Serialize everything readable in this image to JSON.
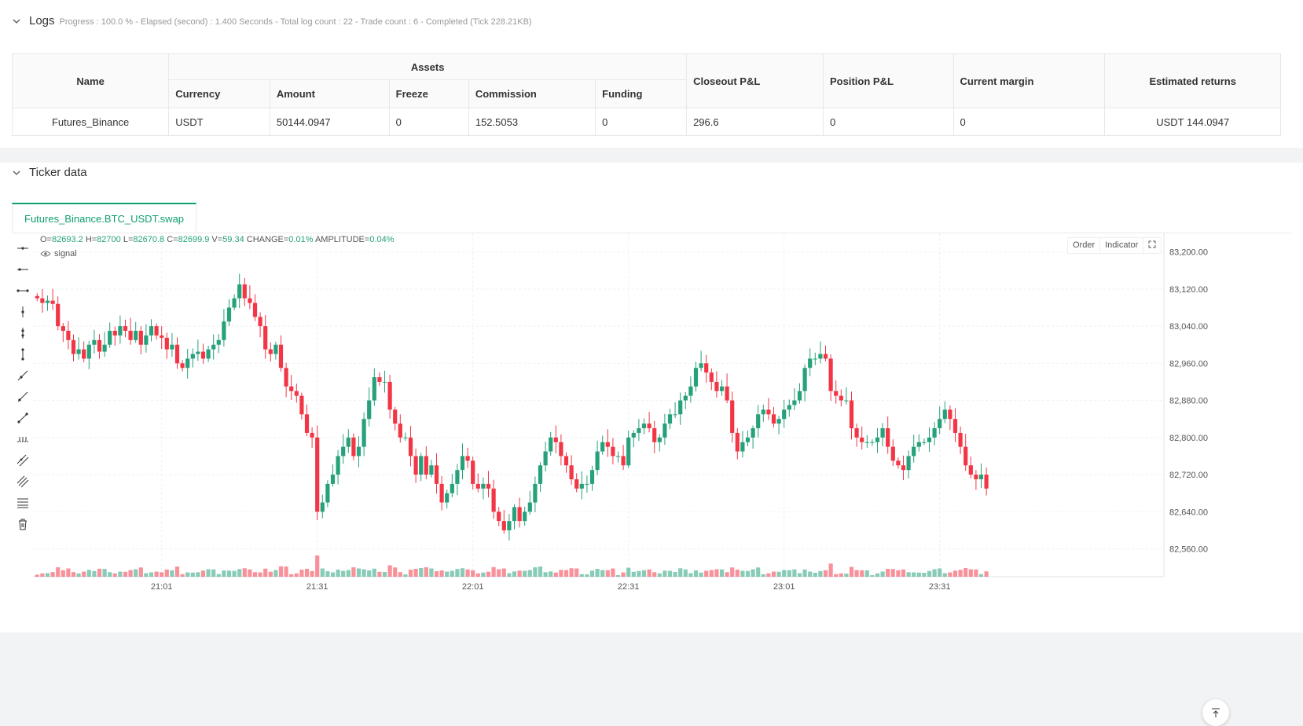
{
  "logs": {
    "title": "Logs",
    "status": "Progress : 100.0 % - Elapsed (second) : 1.400  Seconds - Total log count : 22 - Trade count : 6 - Completed (Tick 228.21KB)",
    "table": {
      "headers": {
        "name": "Name",
        "assets": "Assets",
        "currency": "Currency",
        "amount": "Amount",
        "freeze": "Freeze",
        "commission": "Commission",
        "funding": "Funding",
        "closeout": "Closeout P&L",
        "position": "Position P&L",
        "margin": "Current margin",
        "returns": "Estimated returns"
      },
      "row": {
        "name": "Futures_Binance",
        "currency": "USDT",
        "amount": "50144.0947",
        "freeze": "0",
        "commission": "152.5053",
        "funding": "0",
        "closeout": "296.6",
        "position": "0",
        "margin": "0",
        "returns": "USDT 144.0947"
      }
    }
  },
  "ticker": {
    "title": "Ticker data",
    "tab_label": "Futures_Binance.BTC_USDT.swap",
    "ohlc": {
      "o_label": "O=",
      "o": "82693.2",
      "h_label": "H=",
      "h": "82700",
      "l_label": "L=",
      "l": "82670.8",
      "c_label": "C=",
      "c": "82699.9",
      "v_label": "V=",
      "v": "59.34",
      "change_label": "CHANGE=",
      "change": "0.01%",
      "amp_label": "AMPLITUDE=",
      "amp": "0.04%"
    },
    "signal_label": "signal",
    "buttons": {
      "order": "Order",
      "indicator": "Indicator"
    }
  },
  "colors": {
    "up": "#26a17b",
    "down": "#f23645",
    "accent": "#0e9f6e"
  },
  "chart_data": {
    "type": "candlestick",
    "symbol": "Futures_Binance.BTC_USDT.swap",
    "ylim": [
      82500,
      83240
    ],
    "y_ticks": [
      83200,
      83120,
      83040,
      82960,
      82880,
      82800,
      82720,
      82640,
      82560
    ],
    "y_tick_labels": [
      "83,200.00",
      "83,120.00",
      "83,040.00",
      "82,960.00",
      "82,880.00",
      "82,800.00",
      "82,720.00",
      "82,640.00",
      "82,560.00"
    ],
    "x_tick_labels": [
      "21:01",
      "21:31",
      "22:01",
      "22:31",
      "23:01",
      "23:31"
    ],
    "x_tick_index": [
      24,
      54,
      84,
      114,
      144,
      174
    ],
    "close": [
      83100,
      83090,
      83095,
      83088,
      83040,
      83030,
      83010,
      82980,
      82990,
      82970,
      83000,
      83010,
      82985,
      83000,
      83030,
      83020,
      83040,
      83030,
      83010,
      83030,
      83000,
      83020,
      83040,
      83020,
      83015,
      82990,
      83000,
      82960,
      82950,
      82970,
      82980,
      82985,
      82970,
      82990,
      83000,
      83010,
      83050,
      83080,
      83100,
      83130,
      83100,
      83090,
      83060,
      83040,
      82990,
      82980,
      83000,
      82950,
      82910,
      82900,
      82890,
      82850,
      82810,
      82800,
      82640,
      82660,
      82700,
      82720,
      82760,
      82780,
      82800,
      82760,
      82780,
      82840,
      82880,
      82930,
      82920,
      82920,
      82860,
      82830,
      82800,
      82800,
      82760,
      82720,
      82760,
      82720,
      82740,
      82700,
      82660,
      82680,
      82700,
      82730,
      82760,
      82750,
      82700,
      82690,
      82700,
      82690,
      82640,
      82620,
      82600,
      82620,
      82650,
      82620,
      82640,
      82660,
      82700,
      82740,
      82770,
      82800,
      82790,
      82760,
      82740,
      82710,
      82690,
      82700,
      82700,
      82730,
      82770,
      82790,
      82780,
      82760,
      82760,
      82740,
      82800,
      82810,
      82820,
      82830,
      82820,
      82790,
      82800,
      82830,
      82850,
      82850,
      82880,
      82890,
      82910,
      82950,
      82960,
      82940,
      82920,
      82900,
      82910,
      82880,
      82810,
      82770,
      82790,
      82800,
      82820,
      82850,
      82860,
      82850,
      82830,
      82840,
      82860,
      82870,
      82880,
      82900,
      82950,
      82970,
      82970,
      82980,
      82970,
      82900,
      82890,
      82880,
      82880,
      82820,
      82800,
      82790,
      82790,
      82790,
      82800,
      82820,
      82780,
      82750,
      82740,
      82730,
      82760,
      82780,
      82790,
      82790,
      82800,
      82820,
      82840,
      82860,
      82840,
      82810,
      82780,
      82740,
      82720,
      82710,
      82720,
      82690
    ]
  }
}
